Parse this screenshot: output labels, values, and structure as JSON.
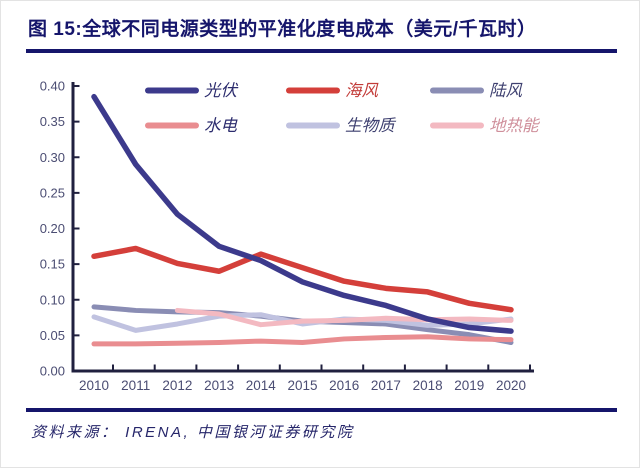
{
  "header": {
    "title": "图 15:全球不同电源类型的平准化度电成本（美元/千瓦时）",
    "title_color": "#15156b",
    "rule_color": "#15156b"
  },
  "footer": {
    "source": "资料来源： IRENA, 中国银河证券研究院",
    "color": "#26266a"
  },
  "chart_data": {
    "type": "line",
    "title": "全球不同电源类型的平准化度电成本",
    "unit": "美元/千瓦时",
    "x": [
      2010,
      2011,
      2012,
      2013,
      2014,
      2015,
      2016,
      2017,
      2018,
      2019,
      2020
    ],
    "ylim": [
      0,
      0.4
    ],
    "ytick_step": 0.05,
    "ytick_labels": [
      "0.00",
      "0.05",
      "0.10",
      "0.15",
      "0.20",
      "0.25",
      "0.30",
      "0.35",
      "0.40"
    ],
    "grid": false,
    "legend_position": "top-inside",
    "legend_rows": [
      [
        "光伏",
        "海风",
        "陆风"
      ],
      [
        "水电",
        "生物质",
        "地热能"
      ]
    ],
    "axis_color": "#20203f",
    "tick_label_color": "#4b4d73",
    "series": [
      {
        "id": "solar-pv",
        "label": "光伏",
        "color": "#3c3a8c",
        "label_color": "#2c2c6e",
        "values": [
          0.385,
          0.29,
          0.22,
          0.175,
          0.155,
          0.125,
          0.106,
          0.092,
          0.073,
          0.061,
          0.056
        ]
      },
      {
        "id": "offshore-wind",
        "label": "海风",
        "color": "#d43f3a",
        "label_color": "#c23b38",
        "values": [
          0.161,
          0.172,
          0.151,
          0.14,
          0.164,
          0.145,
          0.126,
          0.116,
          0.111,
          0.095,
          0.086
        ]
      },
      {
        "id": "onshore-wind",
        "label": "陆风",
        "color": "#8a8db4",
        "label_color": "#3e4070",
        "values": [
          0.09,
          0.085,
          0.083,
          0.082,
          0.077,
          0.07,
          0.068,
          0.066,
          0.058,
          0.051,
          0.04
        ]
      },
      {
        "id": "hydro",
        "label": "水电",
        "color": "#e98d90",
        "label_color": "#2c2c6e",
        "values": [
          0.038,
          0.038,
          0.039,
          0.04,
          0.042,
          0.04,
          0.045,
          0.047,
          0.048,
          0.045,
          0.044
        ]
      },
      {
        "id": "biomass",
        "label": "生物质",
        "color": "#c0c2e0",
        "label_color": "#3e4070",
        "values": [
          0.076,
          0.057,
          0.066,
          0.077,
          0.079,
          0.066,
          0.073,
          0.071,
          0.064,
          0.066,
          0.073
        ]
      },
      {
        "id": "geothermal",
        "label": "地热能",
        "color": "#f3b9c1",
        "label_color": "#cf8f9b",
        "values": [
          null,
          null,
          0.085,
          0.08,
          0.065,
          0.07,
          0.071,
          0.074,
          0.072,
          0.073,
          0.071
        ]
      }
    ]
  }
}
